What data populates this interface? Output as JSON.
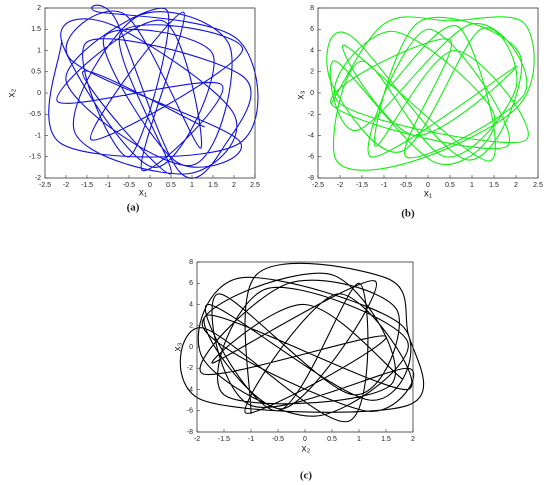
{
  "chart_data": [
    {
      "type": "line",
      "panel_label": "(a)",
      "x_label": "x₁",
      "y_label": "x₂",
      "xlim": [
        -2.5,
        2.5
      ],
      "xticks": [
        -2.5,
        -2,
        -1.5,
        -1,
        -0.5,
        0,
        0.5,
        1,
        1.5,
        2,
        2.5
      ],
      "ylim": [
        -2,
        2
      ],
      "yticks": [
        -2,
        -1.5,
        -1,
        -0.5,
        0,
        0.5,
        1,
        1.5,
        2
      ],
      "series": [
        {
          "color": "#1010e0",
          "x": [
            -2.1,
            -2.1,
            2.1,
            2.1,
            -1.2,
            -0.8,
            0.7,
            1.8,
            2.2,
            -1.5,
            -0.5,
            0.4,
            -2.0,
            1.0,
            1.9,
            -0.3,
            -1.8,
            0.9,
            2.0,
            -0.9,
            -2.1,
            0.1,
            1.5,
            -1.1,
            0.6,
            2.1,
            -1.9,
            -0.6,
            1.2,
            0.3,
            -2.2,
            1.7,
            -0.2,
            0.8,
            -1.4,
            2.2,
            -0.7,
            0.5,
            -1.6,
            1.3
          ],
          "values": [
            1.25,
            -1.2,
            -1.2,
            1.25,
            1.9,
            1.7,
            -1.85,
            -1.2,
            0.4,
            1.2,
            -1.5,
            1.95,
            0.3,
            -1.7,
            1.1,
            1.8,
            -0.9,
            -1.9,
            -0.5,
            1.6,
            1.2,
            -1.75,
            0.9,
            1.3,
            -1.6,
            -1.1,
            0.8,
            1.85,
            -1.3,
            1.7,
            -0.2,
            0.2,
            -1.8,
            1.9,
            -1.1,
            1.0,
            1.4,
            -1.9,
            0.5,
            -0.8
          ]
        }
      ]
    },
    {
      "type": "line",
      "panel_label": "(b)",
      "x_label": "x₁",
      "y_label": "x₃",
      "xlim": [
        -2.5,
        2.5
      ],
      "xticks": [
        -2.5,
        -2,
        -1.5,
        -1,
        -0.5,
        0,
        0.5,
        1,
        1.5,
        2,
        2.5
      ],
      "ylim": [
        -8,
        8
      ],
      "yticks": [
        -8,
        -6,
        -4,
        -2,
        0,
        2,
        4,
        6,
        8
      ],
      "series": [
        {
          "color": "#11ee11",
          "x": [
            -2.2,
            -1.0,
            0.5,
            2.2,
            2.1,
            -0.4,
            -2.1,
            -1.5,
            0.4,
            2.0,
            1.2,
            -0.6,
            -2.2,
            -1.8,
            0.9,
            2.1,
            -0.2,
            -1.2,
            0.6,
            2.2,
            -2.0,
            -0.8,
            1.5,
            0.2,
            -2.1,
            -1.6,
            1.0,
            2.2,
            -0.5,
            0.5,
            -2.2,
            1.8,
            0.0,
            -1.3,
            2.0,
            -0.3,
            -1.9,
            1.4,
            0.7,
            -0.9
          ],
          "values": [
            -1.0,
            6.5,
            6.8,
            6.5,
            -1.0,
            -6.5,
            -6.2,
            3.0,
            -6.0,
            0.5,
            6.0,
            -5.5,
            1.0,
            5.5,
            -6.3,
            3.5,
            6.7,
            -5.0,
            4.0,
            -4.5,
            -1.0,
            5.8,
            -2.0,
            -6.6,
            3.0,
            -3.5,
            6.5,
            0.0,
            -6.0,
            5.0,
            -1.0,
            -5.0,
            6.0,
            -6.0,
            2.5,
            -4.0,
            4.5,
            -6.4,
            6.2,
            0.5
          ]
        }
      ]
    },
    {
      "type": "line",
      "panel_label": "(c)",
      "x_label": "x₂",
      "y_label": "x₃",
      "xlim": [
        -2,
        2
      ],
      "xticks": [
        -2,
        -1.5,
        -1,
        -0.5,
        0,
        0.5,
        1,
        1.5,
        2
      ],
      "ylim": [
        -8,
        8
      ],
      "yticks": [
        -8,
        -6,
        -4,
        -2,
        0,
        2,
        4,
        6,
        8
      ],
      "series": [
        {
          "color": "#000000",
          "x": [
            -1.0,
            -0.9,
            1.5,
            1.9,
            1.9,
            -1.9,
            -1.9,
            0.8,
            1.0,
            -0.5,
            -1.8,
            1.2,
            1.8,
            -1.2,
            -1.9,
            0.2,
            1.9,
            -0.7,
            -1.5,
            1.6,
            0.5,
            -1.9,
            1.1,
            1.9,
            -1.0,
            -1.6,
            0.9,
            1.7,
            -0.3,
            -1.9,
            1.5,
            -1.1,
            0.6,
            1.9,
            -1.8,
            -0.4,
            1.3,
            -1.7,
            0.0,
            1.8
          ],
          "values": [
            -6.3,
            6.8,
            6.5,
            1.5,
            -5.5,
            -5.0,
            1.8,
            -7.0,
            6.0,
            -6.0,
            4.0,
            -5.0,
            2.0,
            6.5,
            -1.0,
            -6.5,
            0.5,
            5.5,
            -4.5,
            -3.5,
            6.8,
            2.0,
            -6.0,
            -2.0,
            -5.5,
            5.0,
            -4.5,
            3.5,
            6.0,
            -2.5,
            1.0,
            -6.2,
            5.0,
            -4.0,
            3.0,
            -5.8,
            6.2,
            -1.5,
            4.0,
            -3.0
          ]
        }
      ]
    }
  ]
}
